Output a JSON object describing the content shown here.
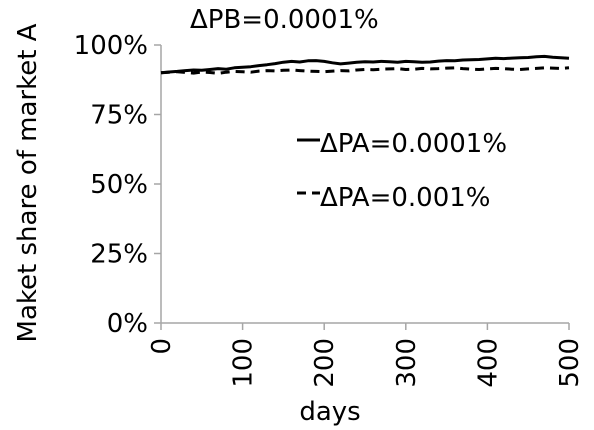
{
  "chart_data": {
    "type": "line",
    "title": "ΔPB=0.0001%",
    "xlabel": "days",
    "ylabel": "Maket share of market A",
    "xlim": [
      0,
      500
    ],
    "ylim": [
      0,
      100
    ],
    "x_ticks": [
      0,
      100,
      200,
      300,
      400,
      500
    ],
    "x_tick_labels": [
      "0",
      "100",
      "200",
      "300",
      "400",
      "500"
    ],
    "y_ticks": [
      0,
      25,
      50,
      75,
      100
    ],
    "y_tick_labels": [
      "0%",
      "25%",
      "50%",
      "75%",
      "100%"
    ],
    "grid": false,
    "legend_position": "center-right",
    "series": [
      {
        "name": "ΔPA=0.0001%",
        "style": "solid",
        "color": "#000000",
        "x": [
          0,
          10,
          20,
          30,
          40,
          50,
          60,
          70,
          80,
          90,
          100,
          110,
          120,
          130,
          140,
          150,
          160,
          170,
          180,
          190,
          200,
          210,
          220,
          230,
          240,
          250,
          260,
          270,
          280,
          290,
          300,
          310,
          320,
          330,
          340,
          350,
          360,
          370,
          380,
          390,
          400,
          410,
          420,
          430,
          440,
          450,
          460,
          470,
          480,
          490,
          500
        ],
        "y": [
          90,
          90.3,
          90.5,
          90.8,
          91,
          90.9,
          91.2,
          91.5,
          91.3,
          91.8,
          92,
          92.2,
          92.6,
          92.9,
          93.3,
          93.8,
          94.1,
          93.9,
          94.3,
          94.4,
          94.1,
          93.6,
          93.2,
          93.5,
          93.8,
          94,
          93.9,
          94.1,
          94,
          93.8,
          94.1,
          94,
          93.8,
          93.9,
          94.2,
          94.4,
          94.3,
          94.6,
          94.7,
          94.8,
          95,
          95.2,
          95.1,
          95.3,
          95.4,
          95.5,
          95.8,
          95.9,
          95.6,
          95.4,
          95.2
        ]
      },
      {
        "name": "ΔPA=0.001%",
        "style": "dashed",
        "color": "#000000",
        "x": [
          0,
          10,
          20,
          30,
          40,
          50,
          60,
          70,
          80,
          90,
          100,
          110,
          120,
          130,
          140,
          150,
          160,
          170,
          180,
          190,
          200,
          210,
          220,
          230,
          240,
          250,
          260,
          270,
          280,
          290,
          300,
          310,
          320,
          330,
          340,
          350,
          360,
          370,
          380,
          390,
          400,
          410,
          420,
          430,
          440,
          450,
          460,
          470,
          480,
          490,
          500
        ],
        "y": [
          90,
          90.2,
          90.4,
          90.1,
          89.9,
          90.3,
          90.1,
          89.8,
          90.2,
          90.5,
          90.4,
          90.2,
          90.6,
          90.8,
          90.7,
          90.9,
          91,
          90.8,
          90.6,
          90.5,
          90.4,
          90.6,
          90.8,
          90.7,
          91,
          91.2,
          91.1,
          91.3,
          91.4,
          91.5,
          91.2,
          91.3,
          91.6,
          91.4,
          91.5,
          91.7,
          91.8,
          91.5,
          91.3,
          91.2,
          91.4,
          91.6,
          91.5,
          91.3,
          91.2,
          91.4,
          91.6,
          91.8,
          91.7,
          91.6,
          91.8
        ]
      }
    ]
  }
}
